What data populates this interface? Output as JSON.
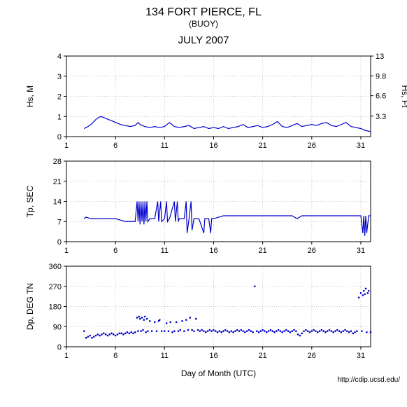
{
  "header": {
    "title": "134 FORT PIERCE, FL",
    "subtitle": "(BUOY)",
    "month": "JULY 2007"
  },
  "footer_url": "http://cdip.ucsd.edu/",
  "x_axis": {
    "label": "Day of Month (UTC)",
    "min": 1,
    "max": 32,
    "ticks": [
      1,
      6,
      11,
      16,
      21,
      26,
      31
    ]
  },
  "colors": {
    "line": "#0000cc",
    "grid": "#cccccc",
    "axis": "#000000",
    "text": "#000000",
    "bg": "#ffffff"
  },
  "panels": [
    {
      "id": "hs",
      "ylabel_left": "Hs, M",
      "ylabel_right": "Hs, Ft",
      "ymin": 0,
      "ymax": 4,
      "yticks": [
        0,
        1,
        2,
        3,
        4
      ],
      "ymin_r": 0,
      "ymax_r": 13,
      "yticks_r": [
        3.3,
        6.6,
        9.8,
        13
      ],
      "style": "line",
      "data": [
        [
          2.8,
          0.4
        ],
        [
          3.0,
          0.45
        ],
        [
          3.2,
          0.5
        ],
        [
          3.5,
          0.6
        ],
        [
          3.8,
          0.75
        ],
        [
          4.0,
          0.85
        ],
        [
          4.3,
          0.95
        ],
        [
          4.5,
          1.0
        ],
        [
          4.8,
          0.95
        ],
        [
          5.0,
          0.9
        ],
        [
          5.3,
          0.85
        ],
        [
          5.5,
          0.8
        ],
        [
          5.8,
          0.75
        ],
        [
          6.0,
          0.7
        ],
        [
          6.3,
          0.65
        ],
        [
          6.5,
          0.6
        ],
        [
          7.0,
          0.55
        ],
        [
          7.5,
          0.5
        ],
        [
          8.0,
          0.55
        ],
        [
          8.3,
          0.7
        ],
        [
          8.5,
          0.6
        ],
        [
          9.0,
          0.5
        ],
        [
          9.5,
          0.45
        ],
        [
          10.0,
          0.5
        ],
        [
          10.5,
          0.45
        ],
        [
          11.0,
          0.5
        ],
        [
          11.5,
          0.7
        ],
        [
          12.0,
          0.5
        ],
        [
          12.5,
          0.45
        ],
        [
          13.0,
          0.5
        ],
        [
          13.5,
          0.55
        ],
        [
          14.0,
          0.4
        ],
        [
          14.5,
          0.45
        ],
        [
          15.0,
          0.5
        ],
        [
          15.5,
          0.4
        ],
        [
          16.0,
          0.45
        ],
        [
          16.5,
          0.4
        ],
        [
          17.0,
          0.5
        ],
        [
          17.5,
          0.4
        ],
        [
          18.0,
          0.45
        ],
        [
          18.5,
          0.5
        ],
        [
          19.0,
          0.6
        ],
        [
          19.5,
          0.45
        ],
        [
          20.0,
          0.5
        ],
        [
          20.5,
          0.55
        ],
        [
          21.0,
          0.45
        ],
        [
          21.5,
          0.5
        ],
        [
          22.0,
          0.6
        ],
        [
          22.5,
          0.75
        ],
        [
          23.0,
          0.5
        ],
        [
          23.5,
          0.45
        ],
        [
          24.0,
          0.55
        ],
        [
          24.5,
          0.65
        ],
        [
          25.0,
          0.5
        ],
        [
          25.5,
          0.55
        ],
        [
          26.0,
          0.6
        ],
        [
          26.5,
          0.55
        ],
        [
          27.0,
          0.65
        ],
        [
          27.5,
          0.7
        ],
        [
          28.0,
          0.55
        ],
        [
          28.5,
          0.5
        ],
        [
          29.0,
          0.6
        ],
        [
          29.5,
          0.7
        ],
        [
          30.0,
          0.5
        ],
        [
          30.5,
          0.45
        ],
        [
          31.0,
          0.4
        ],
        [
          31.5,
          0.3
        ],
        [
          32.0,
          0.25
        ]
      ]
    },
    {
      "id": "tp",
      "ylabel_left": "Tp, SEC",
      "ymin": 0,
      "ymax": 28,
      "yticks": [
        0,
        7,
        14,
        21,
        28
      ],
      "style": "line",
      "data": [
        [
          2.8,
          8
        ],
        [
          3.0,
          8.5
        ],
        [
          3.5,
          8
        ],
        [
          4.0,
          8
        ],
        [
          4.5,
          8
        ],
        [
          5.0,
          8
        ],
        [
          5.5,
          8
        ],
        [
          6.0,
          8
        ],
        [
          6.5,
          7.5
        ],
        [
          7.0,
          7
        ],
        [
          7.5,
          7
        ],
        [
          8.0,
          7
        ],
        [
          8.2,
          14
        ],
        [
          8.3,
          7
        ],
        [
          8.4,
          14
        ],
        [
          8.5,
          6
        ],
        [
          8.6,
          14
        ],
        [
          8.7,
          7
        ],
        [
          8.8,
          14
        ],
        [
          8.9,
          6
        ],
        [
          9.0,
          14
        ],
        [
          9.1,
          7
        ],
        [
          9.2,
          14
        ],
        [
          9.3,
          7
        ],
        [
          9.5,
          8
        ],
        [
          10.0,
          8
        ],
        [
          10.3,
          14
        ],
        [
          10.4,
          7
        ],
        [
          10.6,
          14
        ],
        [
          10.7,
          7
        ],
        [
          11.0,
          8
        ],
        [
          11.2,
          14
        ],
        [
          11.3,
          7
        ],
        [
          11.5,
          8
        ],
        [
          12.0,
          14
        ],
        [
          12.1,
          7
        ],
        [
          12.3,
          14
        ],
        [
          12.4,
          7
        ],
        [
          12.5,
          8
        ],
        [
          13.0,
          8
        ],
        [
          13.2,
          14
        ],
        [
          13.3,
          3
        ],
        [
          13.5,
          8
        ],
        [
          13.7,
          14
        ],
        [
          13.8,
          4
        ],
        [
          14.0,
          8
        ],
        [
          14.5,
          8
        ],
        [
          15.0,
          3
        ],
        [
          15.1,
          8
        ],
        [
          15.5,
          8
        ],
        [
          15.7,
          3
        ],
        [
          15.8,
          8
        ],
        [
          16.0,
          8
        ],
        [
          16.5,
          8.5
        ],
        [
          17.0,
          9
        ],
        [
          17.5,
          9
        ],
        [
          18.0,
          9
        ],
        [
          18.5,
          9
        ],
        [
          19.0,
          9
        ],
        [
          19.5,
          9
        ],
        [
          20.0,
          9
        ],
        [
          20.5,
          9
        ],
        [
          21.0,
          9
        ],
        [
          21.5,
          9
        ],
        [
          22.0,
          9
        ],
        [
          22.5,
          9
        ],
        [
          23.0,
          9
        ],
        [
          23.5,
          9
        ],
        [
          24.0,
          9
        ],
        [
          24.5,
          8
        ],
        [
          25.0,
          9
        ],
        [
          25.5,
          9
        ],
        [
          26.0,
          9
        ],
        [
          26.5,
          9
        ],
        [
          27.0,
          9
        ],
        [
          27.5,
          9
        ],
        [
          28.0,
          9
        ],
        [
          28.5,
          9
        ],
        [
          29.0,
          9
        ],
        [
          29.5,
          9
        ],
        [
          30.0,
          9
        ],
        [
          30.5,
          9
        ],
        [
          31.0,
          9
        ],
        [
          31.2,
          3
        ],
        [
          31.3,
          9
        ],
        [
          31.4,
          2
        ],
        [
          31.5,
          9
        ],
        [
          31.6,
          3
        ],
        [
          31.8,
          9
        ],
        [
          32.0,
          9
        ]
      ]
    },
    {
      "id": "dp",
      "ylabel_left": "Dp, DEG TN",
      "ymin": 0,
      "ymax": 360,
      "yticks": [
        0,
        90,
        180,
        270,
        360
      ],
      "style": "scatter",
      "data": [
        [
          2.8,
          70
        ],
        [
          3.0,
          40
        ],
        [
          3.2,
          45
        ],
        [
          3.4,
          50
        ],
        [
          3.6,
          40
        ],
        [
          3.8,
          45
        ],
        [
          4.0,
          50
        ],
        [
          4.2,
          55
        ],
        [
          4.4,
          50
        ],
        [
          4.6,
          55
        ],
        [
          4.8,
          60
        ],
        [
          5.0,
          55
        ],
        [
          5.2,
          50
        ],
        [
          5.4,
          55
        ],
        [
          5.6,
          60
        ],
        [
          5.8,
          55
        ],
        [
          6.0,
          50
        ],
        [
          6.2,
          55
        ],
        [
          6.4,
          60
        ],
        [
          6.6,
          60
        ],
        [
          6.8,
          55
        ],
        [
          7.0,
          60
        ],
        [
          7.2,
          65
        ],
        [
          7.4,
          60
        ],
        [
          7.6,
          65
        ],
        [
          7.8,
          60
        ],
        [
          8.0,
          65
        ],
        [
          8.2,
          130
        ],
        [
          8.3,
          70
        ],
        [
          8.4,
          135
        ],
        [
          8.5,
          125
        ],
        [
          8.6,
          70
        ],
        [
          8.7,
          130
        ],
        [
          8.8,
          75
        ],
        [
          8.9,
          120
        ],
        [
          9.0,
          135
        ],
        [
          9.1,
          65
        ],
        [
          9.2,
          125
        ],
        [
          9.3,
          70
        ],
        [
          9.5,
          115
        ],
        [
          9.7,
          70
        ],
        [
          10.0,
          110
        ],
        [
          10.2,
          70
        ],
        [
          10.4,
          115
        ],
        [
          10.5,
          120
        ],
        [
          10.7,
          70
        ],
        [
          11.0,
          70
        ],
        [
          11.2,
          105
        ],
        [
          11.4,
          70
        ],
        [
          11.6,
          110
        ],
        [
          11.8,
          65
        ],
        [
          12.0,
          70
        ],
        [
          12.2,
          110
        ],
        [
          12.4,
          70
        ],
        [
          12.6,
          75
        ],
        [
          12.8,
          115
        ],
        [
          13.0,
          70
        ],
        [
          13.2,
          120
        ],
        [
          13.4,
          75
        ],
        [
          13.6,
          130
        ],
        [
          13.8,
          75
        ],
        [
          14.0,
          70
        ],
        [
          14.2,
          125
        ],
        [
          14.4,
          75
        ],
        [
          14.6,
          70
        ],
        [
          14.8,
          75
        ],
        [
          15.0,
          70
        ],
        [
          15.2,
          65
        ],
        [
          15.4,
          70
        ],
        [
          15.6,
          75
        ],
        [
          15.8,
          70
        ],
        [
          16.0,
          75
        ],
        [
          16.2,
          70
        ],
        [
          16.4,
          65
        ],
        [
          16.6,
          70
        ],
        [
          16.8,
          65
        ],
        [
          17.0,
          70
        ],
        [
          17.2,
          75
        ],
        [
          17.4,
          70
        ],
        [
          17.6,
          65
        ],
        [
          17.8,
          70
        ],
        [
          18.0,
          65
        ],
        [
          18.2,
          70
        ],
        [
          18.4,
          75
        ],
        [
          18.6,
          70
        ],
        [
          18.8,
          75
        ],
        [
          19.0,
          70
        ],
        [
          19.2,
          65
        ],
        [
          19.4,
          70
        ],
        [
          19.6,
          75
        ],
        [
          19.8,
          70
        ],
        [
          20.0,
          65
        ],
        [
          20.2,
          270
        ],
        [
          20.4,
          70
        ],
        [
          20.6,
          65
        ],
        [
          20.8,
          70
        ],
        [
          21.0,
          75
        ],
        [
          21.2,
          70
        ],
        [
          21.4,
          65
        ],
        [
          21.6,
          70
        ],
        [
          21.8,
          75
        ],
        [
          22.0,
          70
        ],
        [
          22.2,
          65
        ],
        [
          22.4,
          70
        ],
        [
          22.6,
          75
        ],
        [
          22.8,
          70
        ],
        [
          23.0,
          65
        ],
        [
          23.2,
          70
        ],
        [
          23.4,
          75
        ],
        [
          23.6,
          70
        ],
        [
          23.8,
          65
        ],
        [
          24.0,
          70
        ],
        [
          24.2,
          75
        ],
        [
          24.4,
          70
        ],
        [
          24.6,
          55
        ],
        [
          24.8,
          50
        ],
        [
          25.0,
          60
        ],
        [
          25.2,
          70
        ],
        [
          25.4,
          75
        ],
        [
          25.6,
          70
        ],
        [
          25.8,
          65
        ],
        [
          26.0,
          70
        ],
        [
          26.2,
          75
        ],
        [
          26.4,
          70
        ],
        [
          26.6,
          65
        ],
        [
          26.8,
          70
        ],
        [
          27.0,
          75
        ],
        [
          27.2,
          70
        ],
        [
          27.4,
          65
        ],
        [
          27.6,
          70
        ],
        [
          27.8,
          75
        ],
        [
          28.0,
          70
        ],
        [
          28.2,
          65
        ],
        [
          28.4,
          70
        ],
        [
          28.6,
          75
        ],
        [
          28.8,
          70
        ],
        [
          29.0,
          65
        ],
        [
          29.2,
          70
        ],
        [
          29.4,
          75
        ],
        [
          29.6,
          70
        ],
        [
          29.8,
          65
        ],
        [
          30.0,
          70
        ],
        [
          30.2,
          60
        ],
        [
          30.4,
          65
        ],
        [
          30.6,
          70
        ],
        [
          30.8,
          220
        ],
        [
          31.0,
          240
        ],
        [
          31.1,
          70
        ],
        [
          31.2,
          230
        ],
        [
          31.3,
          250
        ],
        [
          31.4,
          235
        ],
        [
          31.5,
          260
        ],
        [
          31.6,
          65
        ],
        [
          31.7,
          240
        ],
        [
          31.8,
          250
        ],
        [
          32.0,
          65
        ]
      ]
    }
  ]
}
